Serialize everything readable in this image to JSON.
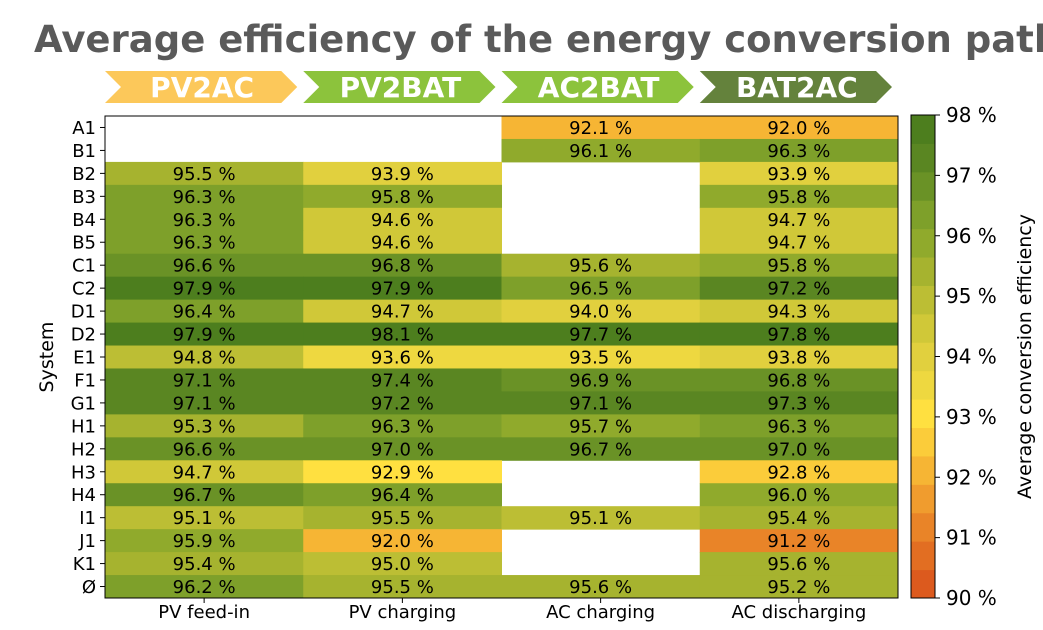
{
  "chart_data": {
    "type": "heatmap",
    "title": "Average efficiency of the energy conversion pathways",
    "pathway_headers": [
      {
        "label": "PV2AC",
        "color": "#fcc85a"
      },
      {
        "label": "PV2BAT",
        "color": "#8cc33c"
      },
      {
        "label": "AC2BAT",
        "color": "#8cc33c"
      },
      {
        "label": "BAT2AC",
        "color": "#64823c"
      }
    ],
    "columns": [
      "PV feed-in",
      "PV charging",
      "AC charging",
      "AC discharging"
    ],
    "rows": [
      "A1",
      "B1",
      "B2",
      "B3",
      "B4",
      "B5",
      "C1",
      "C2",
      "D1",
      "D2",
      "E1",
      "F1",
      "G1",
      "H1",
      "H2",
      "H3",
      "H4",
      "I1",
      "J1",
      "K1",
      "Ø"
    ],
    "ylabel": "System",
    "colorbar": {
      "label": "Average conversion efficiency",
      "min": 90,
      "max": 98,
      "ticks": [
        "98 %",
        "97 %",
        "96 %",
        "95 %",
        "94 %",
        "93 %",
        "92 %",
        "91 %",
        "90 %"
      ],
      "tick_values": [
        98,
        97,
        96,
        95,
        94,
        93,
        92,
        91,
        90
      ]
    },
    "value_suffix": " %",
    "values": [
      [
        null,
        null,
        92.1,
        92.0
      ],
      [
        null,
        null,
        96.1,
        96.3
      ],
      [
        95.5,
        93.9,
        null,
        93.9
      ],
      [
        96.3,
        95.8,
        null,
        95.8
      ],
      [
        96.3,
        94.6,
        null,
        94.7
      ],
      [
        96.3,
        94.6,
        null,
        94.7
      ],
      [
        96.6,
        96.8,
        95.6,
        95.8
      ],
      [
        97.9,
        97.9,
        96.5,
        97.2
      ],
      [
        96.4,
        94.7,
        94.0,
        94.3
      ],
      [
        97.9,
        98.1,
        97.7,
        97.8
      ],
      [
        94.8,
        93.6,
        93.5,
        93.8
      ],
      [
        97.1,
        97.4,
        96.9,
        96.8
      ],
      [
        97.1,
        97.2,
        97.1,
        97.3
      ],
      [
        95.3,
        96.3,
        95.7,
        96.3
      ],
      [
        96.6,
        97.0,
        96.7,
        97.0
      ],
      [
        94.7,
        92.9,
        null,
        92.8
      ],
      [
        96.7,
        96.4,
        null,
        96.0
      ],
      [
        95.1,
        95.5,
        95.1,
        95.4
      ],
      [
        95.9,
        92.0,
        null,
        91.2
      ],
      [
        95.4,
        95.0,
        null,
        95.6
      ],
      [
        96.2,
        95.5,
        95.6,
        95.2
      ]
    ],
    "colormap": [
      "#dc5a1e",
      "#e26e22",
      "#e98428",
      "#f09c2e",
      "#f6b534",
      "#fbcc3a",
      "#ffe040",
      "#eed840",
      "#e1d03e",
      "#d0c838",
      "#bcbe34",
      "#a6b32f",
      "#90aa2c",
      "#7ea02a",
      "#6a9226",
      "#5a8622",
      "#4d7e1e"
    ]
  }
}
